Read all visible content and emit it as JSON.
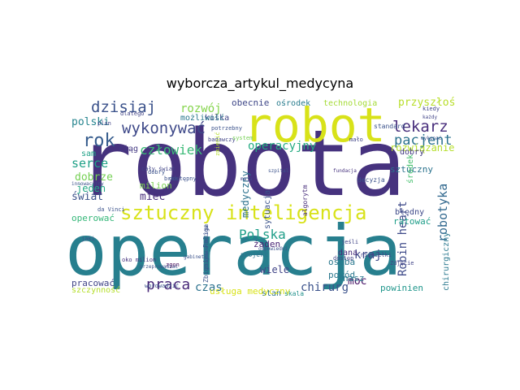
{
  "title": "wyborcza_artykul_medycyna",
  "words": [
    {
      "text": "robota",
      "color": "#46327e"
    },
    {
      "text": "operacja",
      "color": "#277f8e"
    },
    {
      "text": "robot",
      "color": "#d8e219"
    },
    {
      "text": "sztuczny inteligencja",
      "color": "#d8e219"
    },
    {
      "text": "dzisiaj",
      "color": "#3b528b"
    },
    {
      "text": "rok",
      "color": "#365c8d"
    },
    {
      "text": "wykonywać",
      "color": "#3e4989"
    },
    {
      "text": "lekarz",
      "color": "#472d7b"
    },
    {
      "text": "pacjent",
      "color": "#2c728e"
    },
    {
      "text": "człowiek",
      "color": "#3aba76"
    },
    {
      "text": "Polska",
      "color": "#1f9e89"
    },
    {
      "text": "praca",
      "color": "#482878"
    },
    {
      "text": "robotyka",
      "color": "#31688e"
    },
    {
      "text": "Robin heart",
      "color": "#3e4a89"
    },
    {
      "text": "chirurg",
      "color": "#3b528b"
    },
    {
      "text": "czas",
      "color": "#2c728e"
    },
    {
      "text": "rozwój",
      "color": "#84d44b"
    },
    {
      "text": "operacyjny",
      "color": "#25ab82"
    },
    {
      "text": "serce",
      "color": "#1fa187"
    },
    {
      "text": "polski",
      "color": "#25848e"
    },
    {
      "text": "przyszłość",
      "color": "#b8de29"
    },
    {
      "text": "technologia",
      "color": "#a5db36"
    },
    {
      "text": "mieć",
      "color": "#472c7a"
    },
    {
      "text": "dobrze",
      "color": "#75d054"
    },
    {
      "text": "świat",
      "color": "#3b528b"
    },
    {
      "text": "jeden",
      "color": "#22a884"
    },
    {
      "text": "milion",
      "color": "#7ad151"
    },
    {
      "text": "wiele",
      "color": "#414487"
    },
    {
      "text": "kraj",
      "color": "#3e4a89"
    },
    {
      "text": "moc",
      "color": "#471164"
    },
    {
      "text": "powód",
      "color": "#2a788e"
    },
    {
      "text": "osoba",
      "color": "#2a788e"
    },
    {
      "text": "rozwiązanie",
      "color": "#b5de2b"
    },
    {
      "text": "sztuczny",
      "color": "#2c738e"
    },
    {
      "text": "żaden",
      "color": "#482475"
    },
    {
      "text": "medyczny",
      "color": "#2c728e"
    },
    {
      "text": "sytuacja",
      "color": "#3b528b"
    },
    {
      "text": "obecnie",
      "color": "#3f4788"
    },
    {
      "text": "ośrodek",
      "color": "#287c8e"
    },
    {
      "text": "kilka",
      "color": "#414487"
    },
    {
      "text": "możliwość",
      "color": "#2a788e"
    },
    {
      "text": "ciąg",
      "color": "#443983"
    },
    {
      "text": "sam",
      "color": "#1fa187"
    },
    {
      "text": "operować",
      "color": "#35b779"
    },
    {
      "text": "pracować",
      "color": "#414487"
    },
    {
      "text": "szczynność",
      "color": "#b5de2b"
    },
    {
      "text": "nasz",
      "color": "#2a788e"
    },
    {
      "text": "stan",
      "color": "#2c728e"
    },
    {
      "text": "powinien",
      "color": "#1f968b"
    },
    {
      "text": "ratować",
      "color": "#1f9e89"
    },
    {
      "text": "błędny",
      "color": "#3e4989"
    },
    {
      "text": "dobry",
      "color": "#443a83"
    },
    {
      "text": "środek",
      "color": "#46c06f"
    },
    {
      "text": "dana",
      "color": "#472d7b"
    },
    {
      "text": "chirurgiczny",
      "color": "#2a788e"
    },
    {
      "text": "usługa medyczny",
      "color": "#d8e219"
    },
    {
      "text": "skala",
      "color": "#21918c"
    },
    {
      "text": "projekt",
      "color": "#2c728e"
    },
    {
      "text": "Zbigniew Religa",
      "color": "#3b528b"
    },
    {
      "text": "standard",
      "color": "#3b528b"
    },
    {
      "text": "badawczy",
      "color": "#414487"
    },
    {
      "text": "system",
      "color": "#75d054"
    },
    {
      "text": "plan",
      "color": "#414487"
    },
    {
      "text": "dlatego",
      "color": "#414487"
    },
    {
      "text": "decyzja",
      "color": "#3b528b"
    },
    {
      "text": "fundacja",
      "color": "#46327e"
    },
    {
      "text": "algorytm",
      "color": "#472d7b"
    },
    {
      "text": "niemiełki",
      "color": "#414487"
    },
    {
      "text": "Zdjęcie",
      "color": "#414487"
    },
    {
      "text": "jeśli",
      "color": "#414487"
    },
    {
      "text": "dostęp",
      "color": "#414487"
    },
    {
      "text": "oko milion",
      "color": "#46327e"
    },
    {
      "text": "da Vinci",
      "color": "#3b528b"
    },
    {
      "text": "innowacyjny",
      "color": "#3b528b"
    },
    {
      "text": "jaki",
      "color": "#3b528b"
    },
    {
      "text": "cały świat",
      "color": "#414487"
    },
    {
      "text": "zgon",
      "color": "#440154"
    },
    {
      "text": "wprowadzić",
      "color": "#3b528b"
    },
    {
      "text": "potrzebny",
      "color": "#3b528b"
    },
    {
      "text": "kiedy",
      "color": "#414487"
    },
    {
      "text": "mało",
      "color": "#414487"
    },
    {
      "text": "szpital",
      "color": "#3b528b"
    },
    {
      "text": "maja",
      "color": "#414487"
    },
    {
      "text": "brak",
      "color": "#3b528b"
    },
    {
      "text": "dostępny",
      "color": "#3b528b"
    },
    {
      "text": "dobry",
      "color": "#3b528b"
    },
    {
      "text": "zmienić",
      "color": "#b5de2b"
    },
    {
      "text": "każdy",
      "color": "#414487"
    },
    {
      "text": "wykonać",
      "color": "#3b528b"
    },
    {
      "text": "przeprowadzać",
      "color": "#3b528b"
    },
    {
      "text": "odpowiedni",
      "color": "#3b528b"
    },
    {
      "text": "gabinet",
      "color": "#3b528b"
    },
    {
      "text": "Zbigniew Religa",
      "color": "#3b528b"
    }
  ]
}
